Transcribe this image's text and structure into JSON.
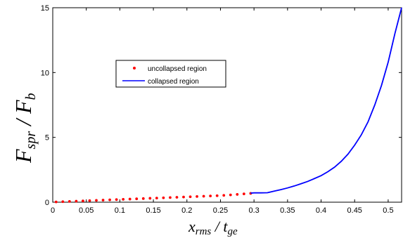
{
  "chart_data": {
    "type": "line",
    "xlim": [
      0,
      0.52
    ],
    "ylim": [
      0,
      15
    ],
    "x_ticks": [
      0,
      0.05,
      0.1,
      0.15,
      0.2,
      0.25,
      0.3,
      0.35,
      0.4,
      0.45,
      0.5
    ],
    "x_tick_labels": [
      "0",
      "0.05",
      "0.1",
      "0.15",
      "0.2",
      "0.25",
      "0.3",
      "0.35",
      "0.4",
      "0.45",
      "0.5"
    ],
    "y_ticks": [
      0,
      5,
      10,
      15
    ],
    "y_tick_labels": [
      "0",
      "5",
      "10",
      "15"
    ],
    "xlabel": {
      "main1": "x",
      "sub1": "rms",
      "slash": " / ",
      "main2": "t",
      "sub2": "ge"
    },
    "ylabel": {
      "main1": "F",
      "sub1": "spr",
      "slash": " / ",
      "main2": "F",
      "sub2": "b"
    },
    "grid": false,
    "legend_position": "upper-left-inset",
    "series": [
      {
        "name": "uncollapsed region",
        "style": "dots",
        "color": "#ff0000",
        "x": [
          0.005,
          0.015,
          0.025,
          0.035,
          0.045,
          0.055,
          0.065,
          0.075,
          0.085,
          0.095,
          0.105,
          0.115,
          0.125,
          0.135,
          0.145,
          0.155,
          0.165,
          0.175,
          0.185,
          0.195,
          0.205,
          0.215,
          0.225,
          0.235,
          0.245,
          0.255,
          0.265,
          0.275,
          0.285,
          0.295
        ],
        "y": [
          0.02,
          0.04,
          0.06,
          0.08,
          0.1,
          0.12,
          0.14,
          0.16,
          0.18,
          0.2,
          0.22,
          0.24,
          0.26,
          0.28,
          0.3,
          0.32,
          0.34,
          0.36,
          0.38,
          0.4,
          0.42,
          0.44,
          0.46,
          0.48,
          0.5,
          0.53,
          0.56,
          0.6,
          0.64,
          0.68
        ]
      },
      {
        "name": "collapsed region",
        "style": "line",
        "color": "#0000ff",
        "x": [
          0.295,
          0.3,
          0.31,
          0.32,
          0.33,
          0.34,
          0.35,
          0.36,
          0.37,
          0.38,
          0.39,
          0.4,
          0.41,
          0.42,
          0.43,
          0.44,
          0.45,
          0.46,
          0.47,
          0.48,
          0.49,
          0.5,
          0.505,
          0.51,
          0.515,
          0.52
        ],
        "y": [
          0.7,
          0.72,
          0.72,
          0.73,
          0.85,
          0.97,
          1.1,
          1.25,
          1.42,
          1.6,
          1.82,
          2.05,
          2.35,
          2.7,
          3.15,
          3.7,
          4.4,
          5.2,
          6.2,
          7.5,
          9.0,
          10.8,
          11.9,
          13.0,
          14.0,
          15.0
        ]
      }
    ]
  }
}
